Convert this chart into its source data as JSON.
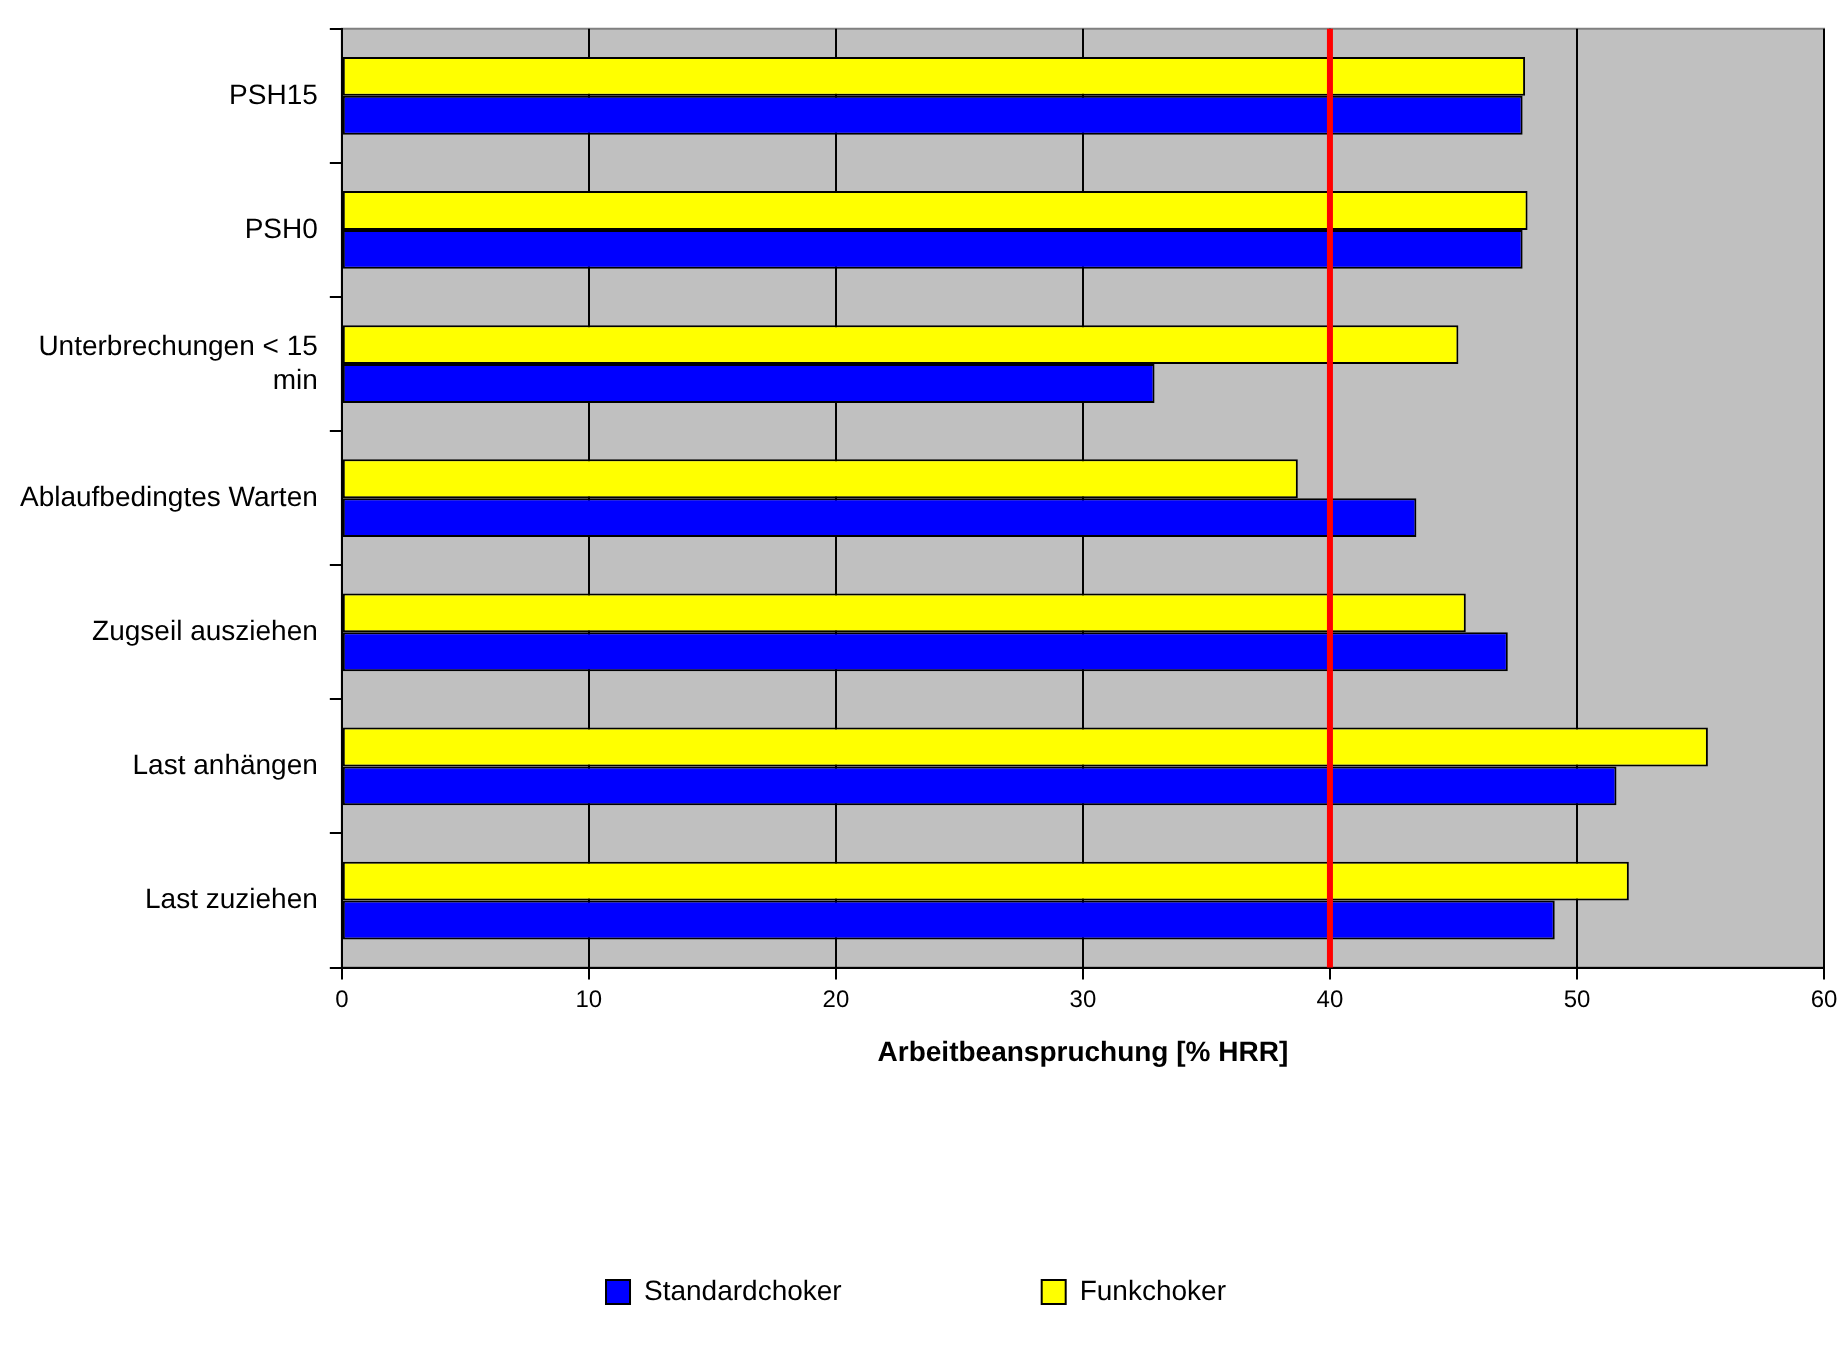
{
  "chart_data": {
    "type": "bar",
    "orientation": "horizontal",
    "xlabel": "Arbeitbeanspruchung [% HRR]",
    "categories": [
      "PSH15",
      "PSH0",
      "Unterbrechungen < 15 min",
      "Ablaufbedingtes Warten",
      "Zugseil ausziehen",
      "Last anhängen",
      "Last zuziehen"
    ],
    "series": [
      {
        "name": "Standardchoker",
        "color": "#0000ff",
        "values": [
          47.8,
          47.8,
          32.9,
          43.5,
          47.2,
          51.6,
          49.1
        ]
      },
      {
        "name": "Funkchoker",
        "color": "#ffff00",
        "values": [
          47.9,
          48.0,
          45.2,
          38.7,
          45.5,
          55.3,
          52.1
        ]
      }
    ],
    "xlim": [
      0,
      60
    ],
    "xticks": [
      0,
      10,
      20,
      30,
      40,
      50,
      60
    ],
    "grid": "x",
    "legend": "bottom",
    "ref_lines": [
      {
        "axis": "x",
        "value": 40,
        "color": "#ff0000"
      }
    ]
  }
}
